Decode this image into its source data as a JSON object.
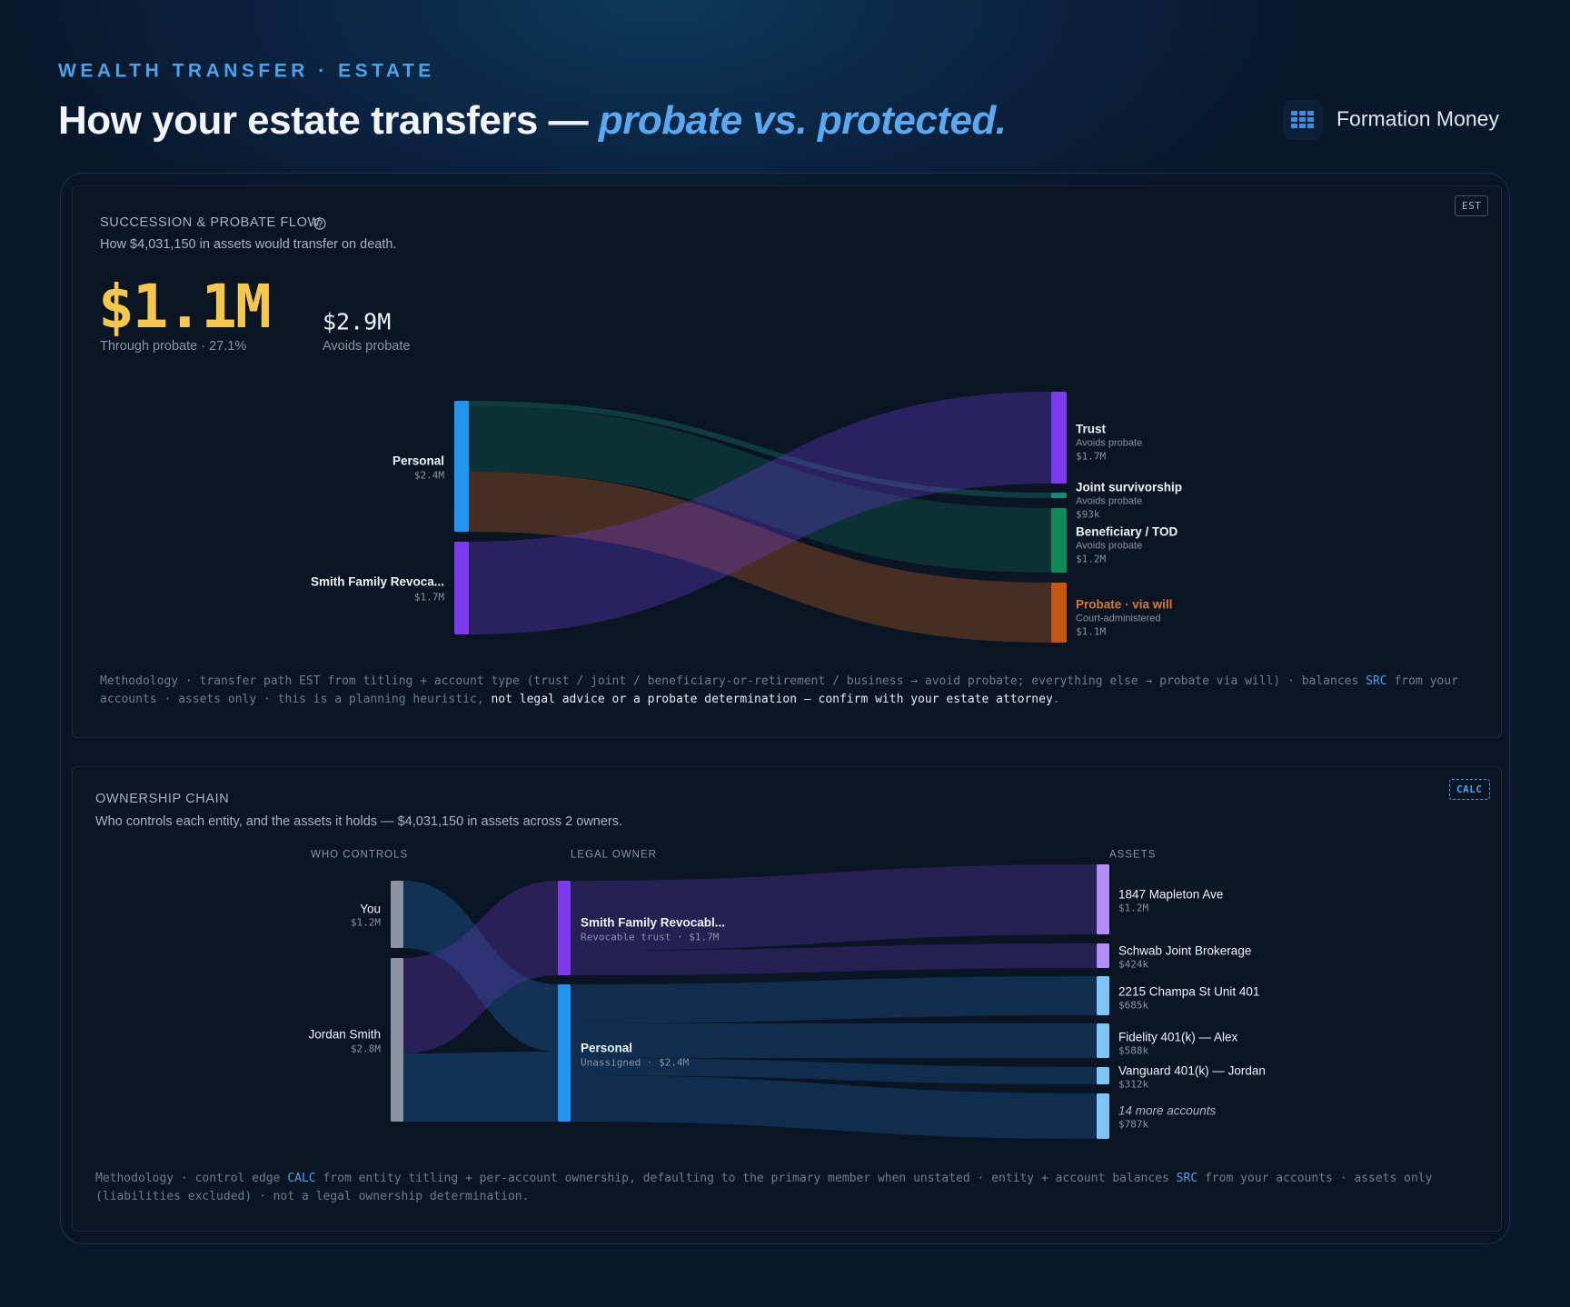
{
  "header": {
    "eyebrow": "WEALTH TRANSFER · ESTATE",
    "title": "How your estate transfers — ",
    "title_emphasis": "probate vs. protected.",
    "brand": "Formation Money"
  },
  "probate_flow": {
    "badge": "EST",
    "title": "SUCCESSION & PROBATE FLOW",
    "subtitle": "How $4,031,150 in assets would transfer on death.",
    "probate": {
      "amount": "$1.1M",
      "caption": "Through probate · 27.1%"
    },
    "protected": {
      "amount": "$2.9M",
      "caption": "Avoids probate"
    },
    "sources": [
      {
        "label": "Personal",
        "value": "$2.4M"
      },
      {
        "label": "Smith Family Revoca...",
        "value": "$1.7M"
      }
    ],
    "destinations": [
      {
        "label": "Trust",
        "note": "Avoids probate",
        "value": "$1.7M"
      },
      {
        "label": "Joint survivorship",
        "note": "Avoids probate",
        "value": "$93k"
      },
      {
        "label": "Beneficiary / TOD",
        "note": "Avoids probate",
        "value": "$1.2M"
      },
      {
        "label": "Probate · via will",
        "note": "Court-administered",
        "value": "$1.1M"
      }
    ],
    "methodology": {
      "text": "Methodology · transfer path EST from titling + account type (trust / joint / beneficiary-or-retirement / business → avoid probate; everything else → probate via will) · balances ",
      "tag": "SRC",
      "text_2": " from your accounts · assets only · this is a planning heuristic, ",
      "emphasis": "not legal advice or a probate determination — confirm with your estate attorney",
      "end": "."
    }
  },
  "ownership_chain": {
    "badge": "CALC",
    "title": "OWNERSHIP CHAIN",
    "subtitle": "Who controls each entity, and the assets it holds — $4,031,150 in assets across 2 owners.",
    "columns": [
      "WHO CONTROLS",
      "LEGAL OWNER",
      "ASSETS"
    ],
    "controllers": [
      {
        "label": "You",
        "value": "$1.2M"
      },
      {
        "label": "Jordan Smith",
        "value": "$2.8M"
      }
    ],
    "owners": [
      {
        "label": "Smith Family Revocabl...",
        "detail": "Revocable trust · $1.7M"
      },
      {
        "label": "Personal",
        "detail": "Unassigned · $2.4M"
      }
    ],
    "assets": [
      {
        "label": "1847 Mapleton Ave",
        "value": "$1.2M"
      },
      {
        "label": "Schwab Joint Brokerage",
        "value": "$424k"
      },
      {
        "label": "2215 Champa St Unit 401",
        "value": "$685k"
      },
      {
        "label": "Fidelity 401(k) — Alex",
        "value": "$588k"
      },
      {
        "label": "Vanguard 401(k) — Jordan",
        "value": "$312k"
      },
      {
        "label": "14 more accounts",
        "value": "$787k"
      }
    ],
    "methodology": {
      "text": "Methodology · control edge ",
      "tag": "CALC",
      "text_2": " from entity titling + per-account ownership, defaulting to the primary member when unstated · entity + account balances ",
      "tag_2": "SRC",
      "text_3": " from your accounts · assets only (liabilities excluded) · not a legal ownership determination."
    }
  }
}
